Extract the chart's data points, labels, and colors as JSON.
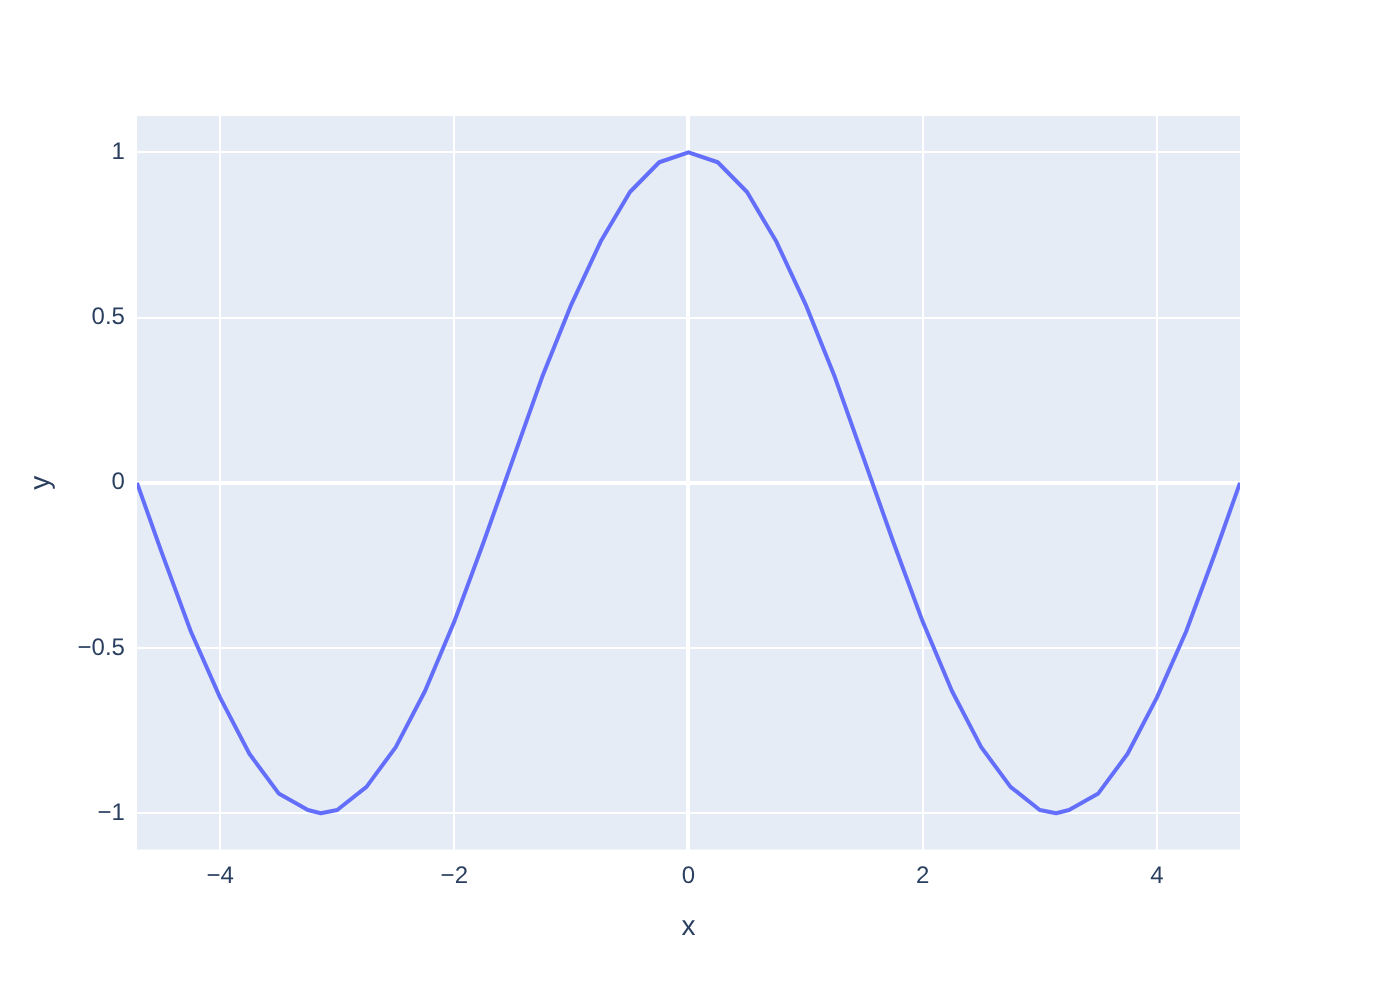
{
  "chart_data": {
    "type": "line",
    "xlabel": "x",
    "ylabel": "y",
    "x": [
      -4.71,
      -4.5,
      -4.25,
      -4.0,
      -3.75,
      -3.5,
      -3.25,
      -3.14,
      -3.0,
      -2.75,
      -2.5,
      -2.25,
      -2.0,
      -1.75,
      -1.5,
      -1.25,
      -1.0,
      -0.75,
      -0.5,
      -0.25,
      0,
      0.25,
      0.5,
      0.75,
      1.0,
      1.25,
      1.5,
      1.75,
      2.0,
      2.25,
      2.5,
      2.75,
      3.0,
      3.14,
      3.25,
      3.5,
      3.75,
      4.0,
      4.25,
      4.5,
      4.71
    ],
    "series": [
      {
        "color": "#636efa",
        "values": [
          0.0,
          -0.21,
          -0.45,
          -0.65,
          -0.82,
          -0.94,
          -0.99,
          -1.0,
          -0.99,
          -0.92,
          -0.8,
          -0.63,
          -0.42,
          -0.18,
          0.07,
          0.32,
          0.54,
          0.73,
          0.88,
          0.97,
          1.0,
          0.97,
          0.88,
          0.73,
          0.54,
          0.32,
          0.07,
          -0.18,
          -0.42,
          -0.63,
          -0.8,
          -0.92,
          -0.99,
          -1.0,
          -0.99,
          -0.94,
          -0.82,
          -0.65,
          -0.45,
          -0.21,
          0.0
        ]
      }
    ],
    "xlim": [
      -4.71,
      4.71
    ],
    "ylim": [
      -1.11,
      1.11
    ],
    "xticks": [
      {
        "value": -4,
        "label": "−4"
      },
      {
        "value": -2,
        "label": "−2"
      },
      0,
      2,
      4
    ],
    "yticks": [
      {
        "value": -1,
        "label": "−1"
      },
      {
        "value": -0.5,
        "label": "−0.5"
      },
      0,
      0.5,
      1
    ],
    "grid": true,
    "legend": false,
    "marker": "none",
    "line_style": "solid"
  }
}
